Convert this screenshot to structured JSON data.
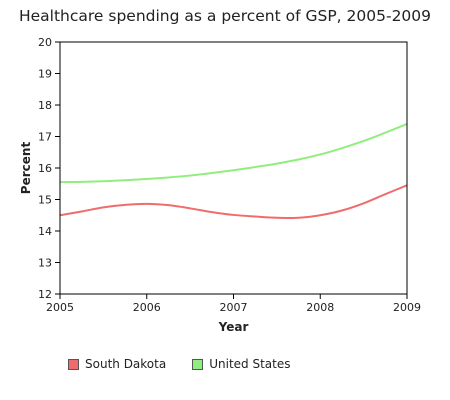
{
  "chart_data": {
    "type": "line",
    "title": "Healthcare spending as a percent of GSP, 2005-2009",
    "xlabel": "Year",
    "ylabel": "Percent",
    "xlim": [
      2005,
      2009
    ],
    "ylim": [
      12,
      20
    ],
    "x_ticks": [
      "2005",
      "2006",
      "2007",
      "2008",
      "2009"
    ],
    "y_ticks": [
      "12",
      "13",
      "14",
      "15",
      "16",
      "17",
      "18",
      "19",
      "20"
    ],
    "legend_position": "bottom",
    "grid": false,
    "series": [
      {
        "name": "South Dakota",
        "color": "#f06c6c",
        "x": [
          2005,
          2005.25,
          2005.5,
          2005.75,
          2006,
          2006.25,
          2006.5,
          2006.75,
          2007,
          2007.25,
          2007.5,
          2007.75,
          2008,
          2008.25,
          2008.5,
          2008.75,
          2009
        ],
        "values": [
          14.5,
          14.62,
          14.75,
          14.83,
          14.86,
          14.82,
          14.72,
          14.6,
          14.51,
          14.46,
          14.42,
          14.42,
          14.5,
          14.65,
          14.88,
          15.17,
          15.45
        ]
      },
      {
        "name": "United States",
        "color": "#90ee7e",
        "x": [
          2005,
          2005.25,
          2005.5,
          2005.75,
          2006,
          2006.25,
          2006.5,
          2006.75,
          2007,
          2007.25,
          2007.5,
          2007.75,
          2008,
          2008.25,
          2008.5,
          2008.75,
          2009
        ],
        "values": [
          15.55,
          15.56,
          15.58,
          15.61,
          15.65,
          15.7,
          15.76,
          15.84,
          15.93,
          16.03,
          16.14,
          16.27,
          16.43,
          16.63,
          16.86,
          17.12,
          17.4
        ]
      }
    ]
  }
}
